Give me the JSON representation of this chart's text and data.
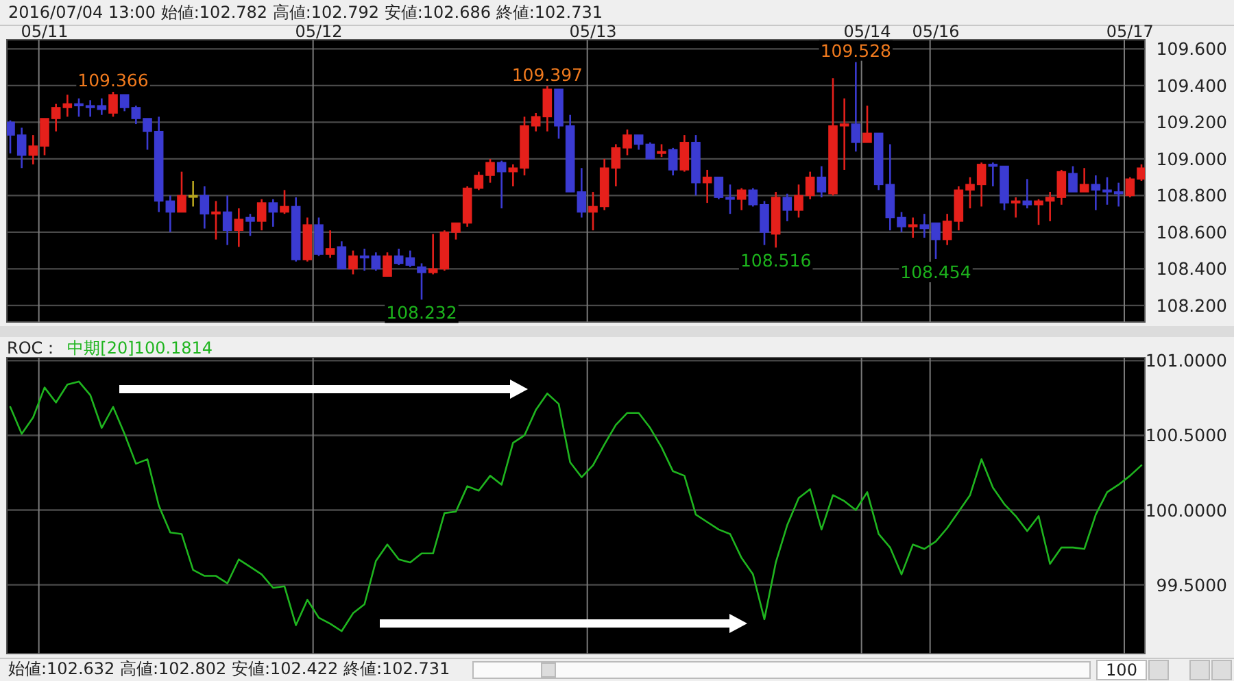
{
  "chart_data": [
    {
      "type": "candlestick",
      "annotations": [
        "2016/07/04 13:00  始値:102.782  高値:102.792  安値:102.686  終値:102.731",
        {
          "text": "109.366",
          "y": 109.366
        },
        {
          "text": "108.232",
          "y": 108.232
        },
        {
          "text": "109.397",
          "y": 109.397
        },
        {
          "text": "108.516",
          "y": 108.516
        },
        {
          "text": "109.528",
          "y": 109.528
        },
        {
          "text": "108.454",
          "y": 108.454
        }
      ],
      "categories": [
        null,
        null,
        null,
        "05/11",
        null,
        null,
        null,
        null,
        null,
        null,
        null,
        null,
        null,
        null,
        null,
        null,
        null,
        null,
        null,
        null,
        null,
        null,
        null,
        null,
        null,
        null,
        null,
        "05/12",
        null,
        null,
        null,
        null,
        null,
        null,
        null,
        null,
        null,
        null,
        null,
        null,
        null,
        null,
        null,
        null,
        null,
        null,
        null,
        null,
        null,
        null,
        null,
        "05/13",
        null,
        null,
        null,
        null,
        null,
        null,
        null,
        null,
        null,
        null,
        null,
        null,
        null,
        null,
        null,
        null,
        null,
        null,
        null,
        null,
        null,
        null,
        null,
        "05/14",
        null,
        null,
        null,
        null,
        null,
        "05/16",
        null,
        null,
        null,
        null,
        null,
        null,
        null,
        null,
        null,
        null,
        null,
        null,
        null,
        null,
        null,
        null,
        "05/17",
        null
      ],
      "ohlc": [
        [
          109.2,
          109.21,
          109.03,
          109.13
        ],
        [
          109.13,
          109.17,
          108.95,
          109.02
        ],
        [
          109.02,
          109.13,
          108.97,
          109.07
        ],
        [
          109.07,
          109.22,
          109.02,
          109.22
        ],
        [
          109.22,
          109.3,
          109.15,
          109.28
        ],
        [
          109.28,
          109.35,
          109.23,
          109.3
        ],
        [
          109.3,
          109.33,
          109.23,
          109.29
        ],
        [
          109.29,
          109.32,
          109.23,
          109.28
        ],
        [
          109.29,
          109.33,
          109.24,
          109.27
        ],
        [
          109.25,
          109.366,
          109.23,
          109.35
        ],
        [
          109.35,
          109.35,
          109.26,
          109.28
        ],
        [
          109.28,
          109.29,
          109.19,
          109.22
        ],
        [
          109.22,
          109.22,
          109.05,
          109.15
        ],
        [
          109.15,
          109.23,
          108.71,
          108.77
        ],
        [
          108.77,
          108.8,
          108.6,
          108.71
        ],
        [
          108.71,
          108.93,
          108.71,
          108.8
        ],
        [
          108.8,
          108.88,
          108.74,
          108.8
        ],
        [
          108.8,
          108.85,
          108.62,
          108.7
        ],
        [
          108.7,
          108.77,
          108.56,
          108.71
        ],
        [
          108.71,
          108.8,
          108.53,
          108.61
        ],
        [
          108.61,
          108.73,
          108.52,
          108.67
        ],
        [
          108.68,
          108.7,
          108.58,
          108.66
        ],
        [
          108.66,
          108.78,
          108.61,
          108.76
        ],
        [
          108.76,
          108.78,
          108.63,
          108.71
        ],
        [
          108.71,
          108.83,
          108.7,
          108.74
        ],
        [
          108.74,
          108.79,
          108.44,
          108.45
        ],
        [
          108.45,
          108.68,
          108.44,
          108.64
        ],
        [
          108.64,
          108.68,
          108.47,
          108.48
        ],
        [
          108.48,
          108.61,
          108.46,
          108.51
        ],
        [
          108.52,
          108.55,
          108.4,
          108.4
        ],
        [
          108.4,
          108.5,
          108.37,
          108.47
        ],
        [
          108.47,
          108.51,
          108.39,
          108.46
        ],
        [
          108.47,
          108.49,
          108.39,
          108.4
        ],
        [
          108.36,
          108.49,
          108.36,
          108.47
        ],
        [
          108.47,
          108.51,
          108.42,
          108.43
        ],
        [
          108.46,
          108.5,
          108.41,
          108.42
        ],
        [
          108.41,
          108.43,
          108.232,
          108.38
        ],
        [
          108.38,
          108.59,
          108.37,
          108.4
        ],
        [
          108.4,
          108.61,
          108.39,
          108.6
        ],
        [
          108.6,
          108.65,
          108.56,
          108.65
        ],
        [
          108.65,
          108.85,
          108.63,
          108.84
        ],
        [
          108.84,
          108.93,
          108.83,
          108.91
        ],
        [
          108.91,
          109.0,
          108.87,
          108.98
        ],
        [
          108.98,
          108.99,
          108.73,
          108.93
        ],
        [
          108.93,
          108.97,
          108.85,
          108.95
        ],
        [
          108.95,
          109.23,
          108.91,
          109.18
        ],
        [
          109.18,
          109.25,
          109.15,
          109.23
        ],
        [
          109.23,
          109.397,
          109.15,
          109.38
        ],
        [
          109.38,
          109.38,
          109.11,
          109.18
        ],
        [
          109.18,
          109.24,
          108.82,
          108.82
        ],
        [
          108.82,
          108.95,
          108.68,
          108.71
        ],
        [
          108.71,
          108.82,
          108.61,
          108.74
        ],
        [
          108.74,
          109.0,
          108.72,
          108.95
        ],
        [
          108.95,
          109.08,
          108.85,
          109.06
        ],
        [
          109.06,
          109.16,
          109.02,
          109.13
        ],
        [
          109.13,
          109.13,
          109.05,
          109.08
        ],
        [
          109.08,
          109.09,
          109.0,
          109.0
        ],
        [
          109.03,
          109.08,
          109.01,
          109.04
        ],
        [
          109.05,
          109.06,
          108.91,
          108.94
        ],
        [
          108.94,
          109.13,
          108.93,
          109.09
        ],
        [
          109.09,
          109.13,
          108.8,
          108.87
        ],
        [
          108.87,
          108.94,
          108.76,
          108.9
        ],
        [
          108.9,
          108.9,
          108.78,
          108.79
        ],
        [
          108.79,
          108.86,
          108.7,
          108.78
        ],
        [
          108.78,
          108.84,
          108.72,
          108.83
        ],
        [
          108.83,
          108.84,
          108.74,
          108.75
        ],
        [
          108.75,
          108.77,
          108.53,
          108.6
        ],
        [
          108.59,
          108.82,
          108.516,
          108.79
        ],
        [
          108.79,
          108.81,
          108.66,
          108.72
        ],
        [
          108.72,
          108.86,
          108.68,
          108.8
        ],
        [
          108.8,
          108.93,
          108.78,
          108.9
        ],
        [
          108.9,
          108.96,
          108.79,
          108.82
        ],
        [
          108.81,
          109.44,
          108.8,
          109.18
        ],
        [
          109.18,
          109.33,
          108.94,
          109.19
        ],
        [
          109.19,
          109.528,
          109.04,
          109.09
        ],
        [
          109.09,
          109.29,
          109.09,
          109.14
        ],
        [
          109.14,
          109.14,
          108.83,
          108.86
        ],
        [
          108.86,
          109.08,
          108.61,
          108.68
        ],
        [
          108.68,
          108.71,
          108.6,
          108.63
        ],
        [
          108.63,
          108.68,
          108.57,
          108.64
        ],
        [
          108.64,
          108.7,
          108.57,
          108.62
        ],
        [
          108.65,
          108.65,
          108.454,
          108.56
        ],
        [
          108.56,
          108.7,
          108.53,
          108.66
        ],
        [
          108.66,
          108.85,
          108.61,
          108.83
        ],
        [
          108.83,
          108.9,
          108.73,
          108.86
        ],
        [
          108.86,
          108.98,
          108.74,
          108.97
        ],
        [
          108.97,
          108.98,
          108.85,
          108.96
        ],
        [
          108.96,
          108.96,
          108.72,
          108.76
        ],
        [
          108.76,
          108.79,
          108.68,
          108.77
        ],
        [
          108.77,
          108.89,
          108.73,
          108.75
        ],
        [
          108.75,
          108.78,
          108.64,
          108.77
        ],
        [
          108.77,
          108.82,
          108.66,
          108.79
        ],
        [
          108.79,
          108.94,
          108.75,
          108.93
        ],
        [
          108.92,
          108.96,
          108.82,
          108.82
        ],
        [
          108.82,
          108.95,
          108.82,
          108.86
        ],
        [
          108.86,
          108.91,
          108.72,
          108.83
        ],
        [
          108.83,
          108.9,
          108.75,
          108.82
        ],
        [
          108.82,
          108.87,
          108.74,
          108.81
        ],
        [
          108.8,
          108.9,
          108.79,
          108.89
        ],
        [
          108.89,
          108.97,
          108.88,
          108.95
        ]
      ],
      "colors": [
        "#3b3bd2",
        "#3b3bd2",
        "#e5201b",
        "#e5201b",
        "#e5201b",
        "#e5201b",
        "#3b3bd2",
        "#3b3bd2",
        "#3b3bd2",
        "#e5201b",
        "#3b3bd2",
        "#3b3bd2",
        "#3b3bd2",
        "#3b3bd2",
        "#3b3bd2",
        "#e5201b",
        "#b5a31e",
        "#3b3bd2",
        "#e5201b",
        "#3b3bd2",
        "#e5201b",
        "#3b3bd2",
        "#e5201b",
        "#3b3bd2",
        "#e5201b",
        "#3b3bd2",
        "#e5201b",
        "#3b3bd2",
        "#e5201b",
        "#3b3bd2",
        "#e5201b",
        "#3b3bd2",
        "#3b3bd2",
        "#e5201b",
        "#3b3bd2",
        "#3b3bd2",
        "#3b3bd2",
        "#e5201b",
        "#e5201b",
        "#e5201b",
        "#e5201b",
        "#e5201b",
        "#e5201b",
        "#3b3bd2",
        "#e5201b",
        "#e5201b",
        "#e5201b",
        "#e5201b",
        "#3b3bd2",
        "#3b3bd2",
        "#3b3bd2",
        "#e5201b",
        "#e5201b",
        "#e5201b",
        "#e5201b",
        "#3b3bd2",
        "#3b3bd2",
        "#e5201b",
        "#3b3bd2",
        "#e5201b",
        "#3b3bd2",
        "#e5201b",
        "#3b3bd2",
        "#3b3bd2",
        "#e5201b",
        "#3b3bd2",
        "#3b3bd2",
        "#e5201b",
        "#3b3bd2",
        "#e5201b",
        "#e5201b",
        "#3b3bd2",
        "#e5201b",
        "#e5201b",
        "#3b3bd2",
        "#e5201b",
        "#3b3bd2",
        "#3b3bd2",
        "#3b3bd2",
        "#e5201b",
        "#3b3bd2",
        "#3b3bd2",
        "#e5201b",
        "#e5201b",
        "#e5201b",
        "#e5201b",
        "#3b3bd2",
        "#3b3bd2",
        "#e5201b",
        "#3b3bd2",
        "#e5201b",
        "#e5201b",
        "#e5201b",
        "#3b3bd2",
        "#e5201b",
        "#3b3bd2",
        "#3b3bd2",
        "#3b3bd2",
        "#e5201b",
        "#e5201b"
      ],
      "ylim": [
        108.11,
        109.65
      ],
      "yticks": [
        {
          "value": 108.2,
          "label": "108.200"
        },
        {
          "value": 108.4,
          "label": "108.400"
        },
        {
          "value": 108.6,
          "label": "108.600"
        },
        {
          "value": 108.8,
          "label": "108.800"
        },
        {
          "value": 109.0,
          "label": "109.000"
        },
        {
          "value": 109.2,
          "label": "109.200"
        },
        {
          "value": 109.4,
          "label": "109.400"
        },
        {
          "value": 109.6,
          "label": "109.600"
        }
      ],
      "grid": true
    },
    {
      "type": "line",
      "title": "ROC：",
      "categories": [
        null,
        null,
        null,
        null,
        null,
        null,
        null,
        null,
        null,
        null,
        null,
        null,
        null,
        null,
        null,
        null,
        null,
        null,
        null,
        null,
        null,
        null,
        null,
        null,
        null,
        null,
        null,
        null,
        null,
        null,
        null,
        null,
        null,
        null,
        null,
        null,
        null,
        null,
        null,
        null,
        null,
        null,
        null,
        null,
        null,
        null,
        null,
        null,
        null,
        null,
        null,
        null,
        null,
        null,
        null,
        null,
        null,
        null,
        null,
        null,
        null,
        null,
        null,
        null,
        null,
        null,
        null,
        null,
        null,
        null,
        null,
        null,
        null,
        null,
        null,
        null,
        null,
        null,
        null,
        null,
        null,
        null,
        null,
        null,
        null,
        null,
        null,
        null,
        null,
        null,
        null,
        null,
        null,
        null,
        null,
        null,
        null,
        null,
        null,
        null
      ],
      "series": [
        {
          "name": "中期[20]100.1814",
          "color": "#1fb51f",
          "values": [
            100.69,
            100.51,
            100.62,
            100.82,
            100.72,
            100.84,
            100.86,
            100.77,
            100.55,
            100.69,
            100.51,
            100.31,
            100.34,
            100.03,
            99.85,
            99.84,
            99.6,
            99.56,
            99.56,
            99.51,
            99.67,
            99.62,
            99.57,
            99.48,
            99.49,
            99.23,
            99.4,
            99.28,
            99.24,
            99.19,
            99.31,
            99.37,
            99.66,
            99.77,
            99.67,
            99.65,
            99.71,
            99.71,
            99.98,
            99.99,
            100.16,
            100.13,
            100.23,
            100.17,
            100.45,
            100.5,
            100.67,
            100.78,
            100.71,
            100.32,
            100.22,
            100.3,
            100.44,
            100.57,
            100.65,
            100.65,
            100.55,
            100.42,
            100.26,
            100.23,
            99.97,
            99.92,
            99.87,
            99.84,
            99.68,
            99.57,
            99.27,
            99.65,
            99.9,
            100.08,
            100.14,
            99.87,
            100.1,
            100.06,
            100.0,
            100.12,
            99.84,
            99.75,
            99.57,
            99.77,
            99.74,
            99.79,
            99.88,
            99.99,
            100.1,
            100.34,
            100.15,
            100.04,
            99.96,
            99.86,
            99.96,
            99.64,
            99.75,
            99.75,
            99.74,
            99.97,
            100.12,
            100.17,
            100.23,
            100.3
          ]
        }
      ],
      "ylim": [
        99.04,
        101.02
      ],
      "yticks": [
        {
          "value": 99.5,
          "label": "99.5000"
        },
        {
          "value": 100.0,
          "label": "100.0000"
        },
        {
          "value": 100.5,
          "label": "100.5000"
        },
        {
          "value": 101.0,
          "label": "101.0000"
        }
      ],
      "grid": true,
      "tick_labels": "y",
      "annotations": [
        "始値:102.632  高値:102.802  安値:102.422  終値:102.731",
        "100"
      ]
    }
  ]
}
